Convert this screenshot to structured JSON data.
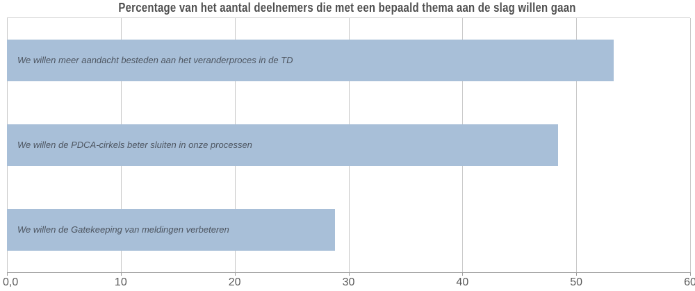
{
  "chart_data": {
    "type": "bar",
    "orientation": "horizontal",
    "title": "Percentage van het aantal deelnemers die met een bepaald thema aan de slag willen gaan",
    "categories": [
      "We willen meer aandacht besteden aan het veranderproces in de TD",
      "We willen de PDCA-cirkels beter sluiten in onze processen",
      "We willen de Gatekeeping van meldingen verbeteren"
    ],
    "values": [
      53.3,
      48.4,
      28.8
    ],
    "xlabel": "",
    "ylabel": "",
    "xlim": [
      0,
      60
    ],
    "x_ticks": [
      "0,0",
      "10",
      "20",
      "30",
      "40",
      "50",
      "60"
    ],
    "grid": true,
    "legend": false,
    "data_labels": false,
    "colors": {
      "bar": "#a8bfd8",
      "grid": "#c9c9c9",
      "axis": "#9e9e9e",
      "plot-top-border": "#d9d9d9",
      "title": "#4f4f4f",
      "bar-label": "#4d5560",
      "tick-label": "#595959"
    }
  }
}
